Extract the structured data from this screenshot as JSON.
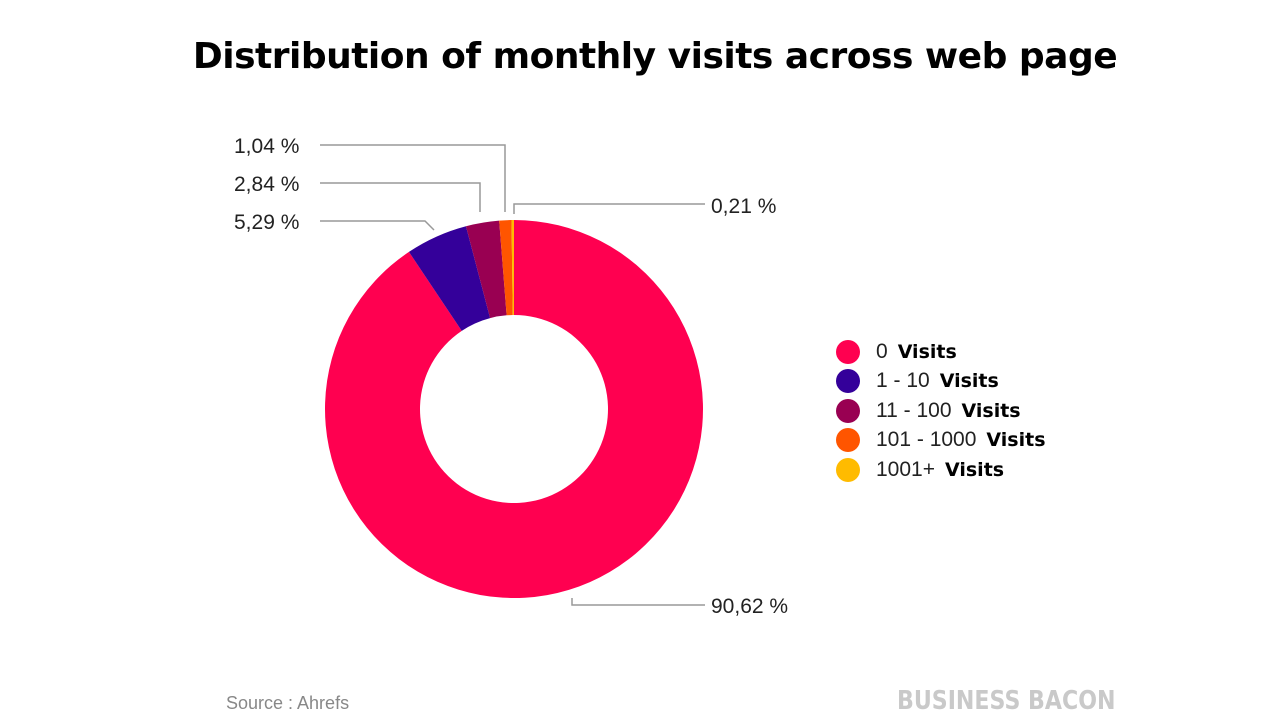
{
  "chart_data": {
    "type": "pie",
    "donut": true,
    "title": "Distribution of monthly visits across web page",
    "categories": [
      "0",
      "1 - 10",
      "11 - 100",
      "101 - 1000",
      "1001+"
    ],
    "legend_suffix": "Visits",
    "values": [
      90.62,
      5.29,
      2.84,
      1.04,
      0.21
    ],
    "value_labels": [
      "90,62 %",
      "5,29 %",
      "2,84 %",
      "1,04 %",
      "0,21 %"
    ],
    "colors": [
      "#ff0050",
      "#34009a",
      "#990052",
      "#ff5500",
      "#ffbb00"
    ],
    "legend_position": "right",
    "source": "Source : Ahrefs"
  },
  "brand": "BUSINESS BACON"
}
